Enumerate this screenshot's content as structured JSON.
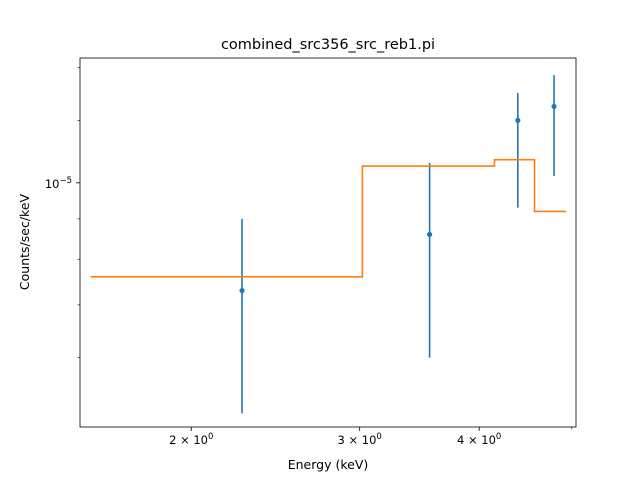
{
  "chart_data": {
    "type": "scatter",
    "title": "combined_src356_src_reb1.pi",
    "xlabel": "Energy (keV)",
    "ylabel": "Counts/sec/keV",
    "xscale": "log",
    "yscale": "log",
    "xlim": [
      1.53,
      5.05
    ],
    "ylim": [
      4.9e-06,
      1.44e-05
    ],
    "grid": false,
    "x_ticks": [
      {
        "value": 2.0,
        "mant": "2",
        "exp": "0"
      },
      {
        "value": 3.0,
        "mant": "3",
        "exp": "0"
      },
      {
        "value": 4.0,
        "mant": "4",
        "exp": "0"
      }
    ],
    "x_minor_ticks": [
      5.0
    ],
    "y_ticks": [
      {
        "value": 1e-05,
        "mant": "10",
        "exp": "−5"
      }
    ],
    "y_minor_ticks": [
      6e-06,
      7e-06,
      8e-06,
      9e-06,
      1.2e-05,
      1.4e-05
    ],
    "series": [
      {
        "kind": "errorbar",
        "color": "#1f77b4",
        "points": [
          {
            "x": 2.26,
            "y": 7.3e-06,
            "ylo": 5.1e-06,
            "yhi": 9e-06
          },
          {
            "x": 3.55,
            "y": 8.6e-06,
            "ylo": 6e-06,
            "yhi": 1.06e-05
          },
          {
            "x": 4.39,
            "y": 1.2e-05,
            "ylo": 9.3e-06,
            "yhi": 1.3e-05
          },
          {
            "x": 4.79,
            "y": 1.25e-05,
            "ylo": 1.02e-05,
            "yhi": 1.37e-05
          }
        ]
      },
      {
        "kind": "step",
        "color": "#ff7f0e",
        "steps": [
          {
            "x0": 1.57,
            "x1": 3.02,
            "y": 7.6e-06
          },
          {
            "x0": 3.02,
            "x1": 4.15,
            "y": 1.05e-05
          },
          {
            "x0": 4.15,
            "x1": 4.57,
            "y": 1.07e-05
          },
          {
            "x0": 4.57,
            "x1": 4.93,
            "y": 9.2e-06
          }
        ]
      }
    ]
  }
}
